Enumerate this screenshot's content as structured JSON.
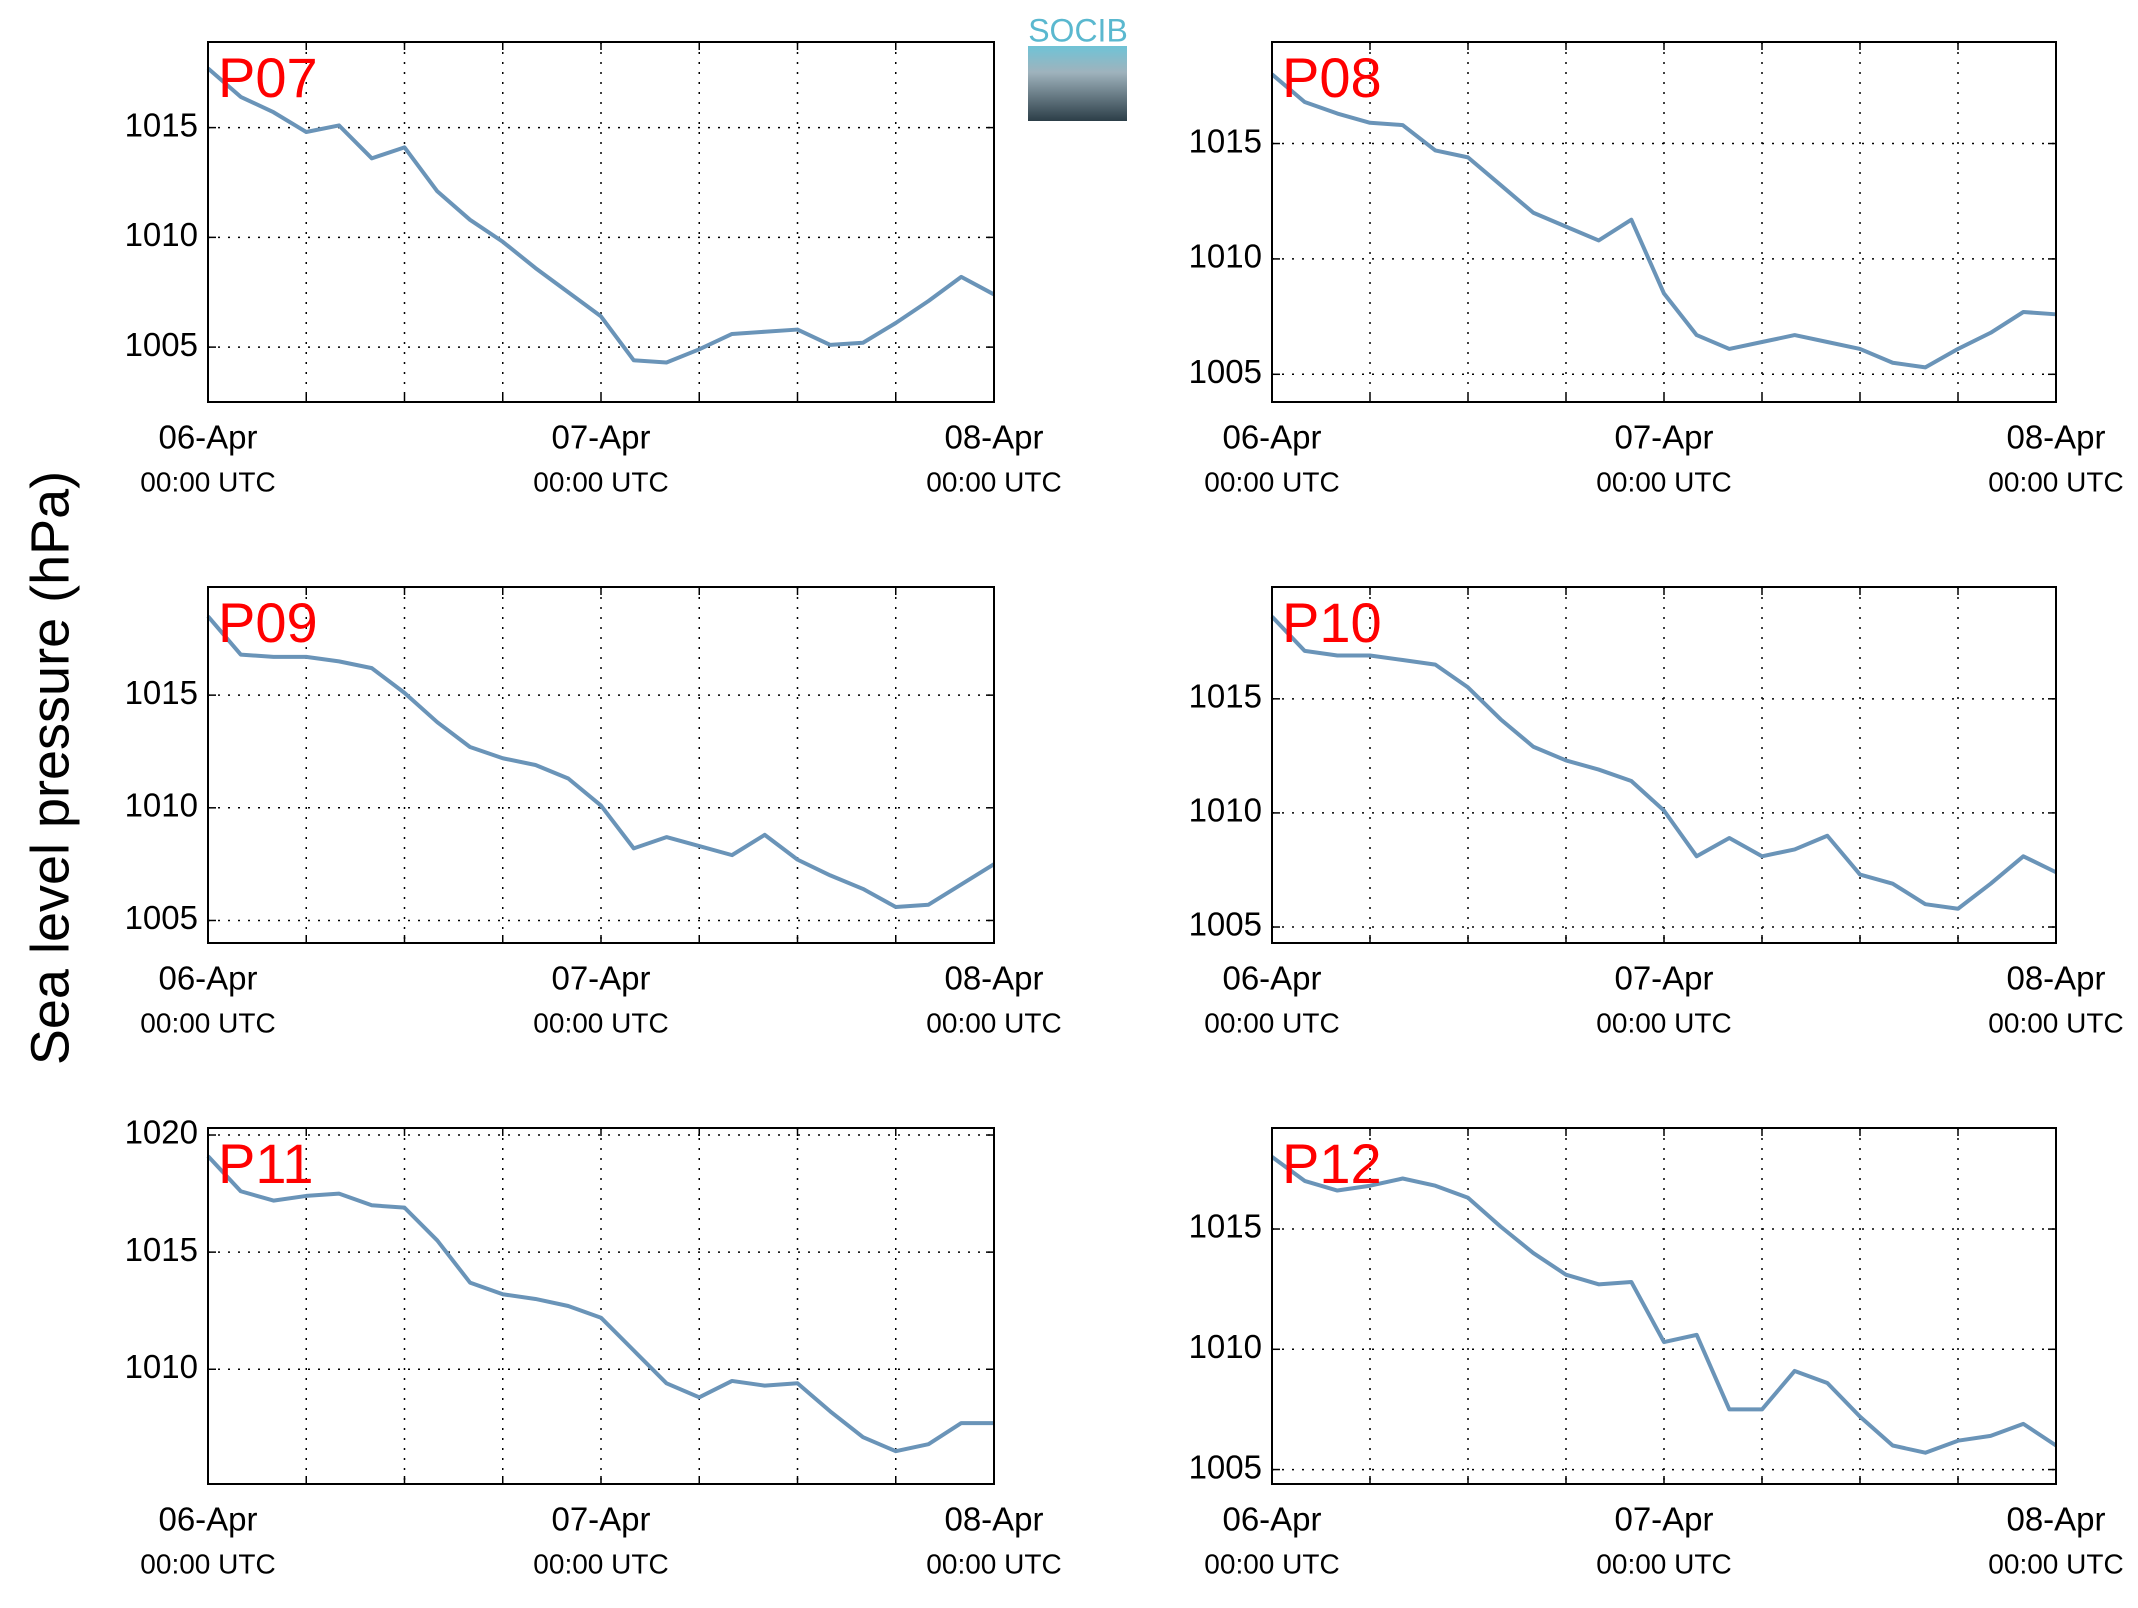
{
  "ylabel": "Sea level pressure (hPa)",
  "logo": "SOCIB",
  "chart_data": [
    {
      "type": "line",
      "title": "P07",
      "color": "#6a94b8",
      "grid": true,
      "x": [
        0,
        2,
        4,
        6,
        8,
        10,
        12,
        14,
        16,
        18,
        20,
        22,
        24,
        26,
        28,
        30,
        32,
        34,
        36,
        38,
        40,
        42,
        44,
        46,
        48
      ],
      "values": [
        1017.7,
        1016.4,
        1015.7,
        1014.8,
        1015.1,
        1013.6,
        1014.1,
        1012.1,
        1010.8,
        1009.8,
        1008.6,
        1007.5,
        1006.4,
        1004.4,
        1004.3,
        1004.9,
        1005.6,
        1005.7,
        1005.8,
        1005.1,
        1005.2,
        1006.1,
        1007.1,
        1008.2,
        1007.4
      ],
      "xlim": [
        0,
        48
      ],
      "xticks": [
        {
          "value": 0,
          "label": "06-Apr",
          "sublabel": "00:00 UTC"
        },
        {
          "value": 24,
          "label": "07-Apr",
          "sublabel": "00:00 UTC"
        },
        {
          "value": 48,
          "label": "08-Apr",
          "sublabel": "00:00 UTC"
        }
      ],
      "xminorticks": [
        6,
        12,
        18,
        30,
        36,
        42
      ],
      "ylim": [
        1002.5,
        1018.9
      ],
      "yticks": [
        1005,
        1010,
        1015
      ]
    },
    {
      "type": "line",
      "title": "P08",
      "color": "#6a94b8",
      "grid": true,
      "x": [
        0,
        2,
        4,
        6,
        8,
        10,
        12,
        14,
        16,
        18,
        20,
        22,
        24,
        26,
        28,
        30,
        32,
        34,
        36,
        38,
        40,
        42,
        44,
        46,
        48
      ],
      "values": [
        1018.0,
        1016.8,
        1016.3,
        1015.9,
        1015.8,
        1014.7,
        1014.4,
        1013.2,
        1012.0,
        1011.4,
        1010.8,
        1011.7,
        1008.5,
        1006.7,
        1006.1,
        1006.4,
        1006.7,
        1006.4,
        1006.1,
        1005.5,
        1005.3,
        1006.1,
        1006.8,
        1007.7,
        1007.6
      ],
      "xlim": [
        0,
        48
      ],
      "xticks": [
        {
          "value": 0,
          "label": "06-Apr",
          "sublabel": "00:00 UTC"
        },
        {
          "value": 24,
          "label": "07-Apr",
          "sublabel": "00:00 UTC"
        },
        {
          "value": 48,
          "label": "08-Apr",
          "sublabel": "00:00 UTC"
        }
      ],
      "xminorticks": [
        6,
        12,
        18,
        30,
        36,
        42
      ],
      "ylim": [
        1003.8,
        1019.4
      ],
      "yticks": [
        1005,
        1010,
        1015
      ]
    },
    {
      "type": "line",
      "title": "P09",
      "color": "#6a94b8",
      "grid": true,
      "x": [
        0,
        2,
        4,
        6,
        8,
        10,
        12,
        14,
        16,
        18,
        20,
        22,
        24,
        26,
        28,
        30,
        32,
        34,
        36,
        38,
        40,
        42,
        44,
        46,
        48
      ],
      "values": [
        1018.5,
        1016.8,
        1016.7,
        1016.7,
        1016.5,
        1016.2,
        1015.1,
        1013.8,
        1012.7,
        1012.2,
        1011.9,
        1011.3,
        1010.1,
        1008.2,
        1008.7,
        1008.3,
        1007.9,
        1008.8,
        1007.7,
        1007.0,
        1006.4,
        1005.6,
        1005.7,
        1006.6,
        1007.5
      ],
      "xlim": [
        0,
        48
      ],
      "xticks": [
        {
          "value": 0,
          "label": "06-Apr",
          "sublabel": "00:00 UTC"
        },
        {
          "value": 24,
          "label": "07-Apr",
          "sublabel": "00:00 UTC"
        },
        {
          "value": 48,
          "label": "08-Apr",
          "sublabel": "00:00 UTC"
        }
      ],
      "xminorticks": [
        6,
        12,
        18,
        30,
        36,
        42
      ],
      "ylim": [
        1004.0,
        1019.8
      ],
      "yticks": [
        1005,
        1010,
        1015
      ]
    },
    {
      "type": "line",
      "title": "P10",
      "color": "#6a94b8",
      "grid": true,
      "x": [
        0,
        2,
        4,
        6,
        8,
        10,
        12,
        14,
        16,
        18,
        20,
        22,
        24,
        26,
        28,
        30,
        32,
        34,
        36,
        38,
        40,
        42,
        44,
        46,
        48
      ],
      "values": [
        1018.6,
        1017.1,
        1016.9,
        1016.9,
        1016.7,
        1016.5,
        1015.5,
        1014.1,
        1012.9,
        1012.3,
        1011.9,
        1011.4,
        1010.1,
        1008.1,
        1008.9,
        1008.1,
        1008.4,
        1009.0,
        1007.3,
        1006.9,
        1006.0,
        1005.8,
        1006.9,
        1008.1,
        1007.4
      ],
      "xlim": [
        0,
        48
      ],
      "xticks": [
        {
          "value": 0,
          "label": "06-Apr",
          "sublabel": "00:00 UTC"
        },
        {
          "value": 24,
          "label": "07-Apr",
          "sublabel": "00:00 UTC"
        },
        {
          "value": 48,
          "label": "08-Apr",
          "sublabel": "00:00 UTC"
        }
      ],
      "xminorticks": [
        6,
        12,
        18,
        30,
        36,
        42
      ],
      "ylim": [
        1004.3,
        1019.9
      ],
      "yticks": [
        1005,
        1010,
        1015
      ]
    },
    {
      "type": "line",
      "title": "P11",
      "color": "#6a94b8",
      "grid": true,
      "x": [
        0,
        2,
        4,
        6,
        8,
        10,
        12,
        14,
        16,
        18,
        20,
        22,
        24,
        26,
        28,
        30,
        32,
        34,
        36,
        38,
        40,
        42,
        44,
        46,
        48
      ],
      "values": [
        1019.1,
        1017.6,
        1017.2,
        1017.4,
        1017.5,
        1017.0,
        1016.9,
        1015.5,
        1013.7,
        1013.2,
        1013.0,
        1012.7,
        1012.2,
        1010.8,
        1009.4,
        1008.8,
        1009.5,
        1009.3,
        1009.4,
        1008.2,
        1007.1,
        1006.5,
        1006.8,
        1007.7,
        1007.7
      ],
      "xlim": [
        0,
        48
      ],
      "xticks": [
        {
          "value": 0,
          "label": "06-Apr",
          "sublabel": "00:00 UTC"
        },
        {
          "value": 24,
          "label": "07-Apr",
          "sublabel": "00:00 UTC"
        },
        {
          "value": 48,
          "label": "08-Apr",
          "sublabel": "00:00 UTC"
        }
      ],
      "xminorticks": [
        6,
        12,
        18,
        30,
        36,
        42
      ],
      "ylim": [
        1005.1,
        1020.3
      ],
      "yticks": [
        1010,
        1015,
        1020
      ]
    },
    {
      "type": "line",
      "title": "P12",
      "color": "#6a94b8",
      "grid": true,
      "x": [
        0,
        2,
        4,
        6,
        8,
        10,
        12,
        14,
        16,
        18,
        20,
        22,
        24,
        26,
        28,
        30,
        32,
        34,
        36,
        38,
        40,
        42,
        44,
        46,
        48
      ],
      "values": [
        1018.0,
        1017.0,
        1016.6,
        1016.8,
        1017.1,
        1016.8,
        1016.3,
        1015.1,
        1014.0,
        1013.1,
        1012.7,
        1012.8,
        1010.3,
        1010.6,
        1007.5,
        1007.5,
        1009.1,
        1008.6,
        1007.2,
        1006.0,
        1005.7,
        1006.2,
        1006.4,
        1006.9,
        1006.0
      ],
      "xlim": [
        0,
        48
      ],
      "xticks": [
        {
          "value": 0,
          "label": "06-Apr",
          "sublabel": "00:00 UTC"
        },
        {
          "value": 24,
          "label": "07-Apr",
          "sublabel": "00:00 UTC"
        },
        {
          "value": 48,
          "label": "08-Apr",
          "sublabel": "00:00 UTC"
        }
      ],
      "xminorticks": [
        6,
        12,
        18,
        30,
        36,
        42
      ],
      "ylim": [
        1004.4,
        1019.2
      ],
      "yticks": [
        1005,
        1010,
        1015
      ]
    }
  ]
}
